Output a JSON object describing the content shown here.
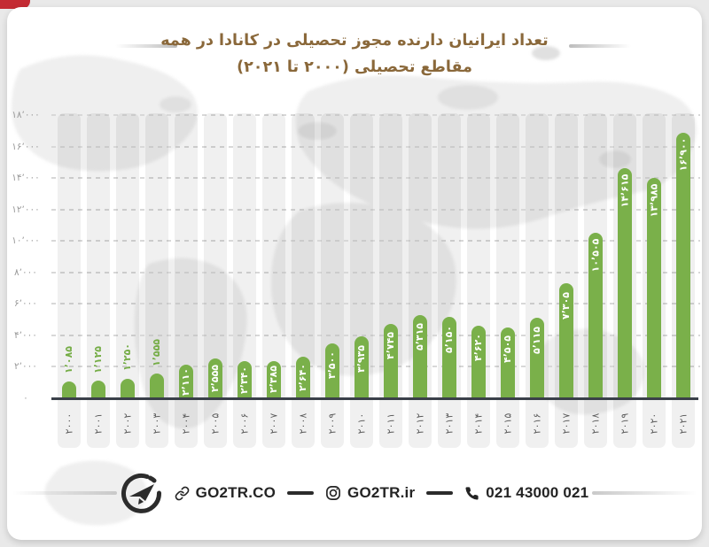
{
  "page": {
    "title_line1": "تعداد ایرانیان دارنده مجوز تحصیلی در کانادا در همه",
    "title_line2": "مقاطع تحصیلی (۲۰۰۰ تا ۲۰۲۱)"
  },
  "chart_data": {
    "type": "bar",
    "title": "تعداد ایرانیان دارنده مجوز تحصیلی در کانادا در همه مقاطع تحصیلی (۲۰۰۰ تا ۲۰۲۱)",
    "ylim": [
      0,
      18000
    ],
    "grid": "horizontal-dashed",
    "bar_color": "#7ab04a",
    "y_ticks": [
      {
        "value": 0,
        "label": "۰"
      },
      {
        "value": 2000,
        "label": "۲٬۰۰۰"
      },
      {
        "value": 4000,
        "label": "۴٬۰۰۰"
      },
      {
        "value": 6000,
        "label": "۶٬۰۰۰"
      },
      {
        "value": 8000,
        "label": "۸٬۰۰۰"
      },
      {
        "value": 10000,
        "label": "۱۰٬۰۰۰"
      },
      {
        "value": 12000,
        "label": "۱۲٬۰۰۰"
      },
      {
        "value": 14000,
        "label": "۱۴٬۰۰۰"
      },
      {
        "value": 16000,
        "label": "۱۶٬۰۰۰"
      },
      {
        "value": 18000,
        "label": "۱۸٬۰۰۰"
      }
    ],
    "bars": [
      {
        "year": "2000",
        "year_fa": "۲۰۰۰",
        "value": 1085,
        "label": "۱٬۰۸۵",
        "label_position": "above"
      },
      {
        "year": "2001",
        "year_fa": "۲۰۰۱",
        "value": 1125,
        "label": "۱٬۱۲۵",
        "label_position": "above"
      },
      {
        "year": "2002",
        "year_fa": "۲۰۰۲",
        "value": 1250,
        "label": "۱٬۲۵۰",
        "label_position": "above"
      },
      {
        "year": "2003",
        "year_fa": "۲۰۰۳",
        "value": 1555,
        "label": "۱٬۵۵۵",
        "label_position": "above"
      },
      {
        "year": "2004",
        "year_fa": "۲۰۰۴",
        "value": 2110,
        "label": "۲٬۱۱۰",
        "label_position": "inside"
      },
      {
        "year": "2005",
        "year_fa": "۲۰۰۵",
        "value": 2555,
        "label": "۲٬۵۵۵",
        "label_position": "inside"
      },
      {
        "year": "2006",
        "year_fa": "۲۰۰۶",
        "value": 2340,
        "label": "۲٬۳۴۰",
        "label_position": "inside"
      },
      {
        "year": "2007",
        "year_fa": "۲۰۰۷",
        "value": 2385,
        "label": "۲٬۳۸۵",
        "label_position": "inside"
      },
      {
        "year": "2008",
        "year_fa": "۲۰۰۸",
        "value": 2640,
        "label": "۲٬۶۴۰",
        "label_position": "inside"
      },
      {
        "year": "2009",
        "year_fa": "۲۰۰۹",
        "value": 3500,
        "label": "۳٬۵۰۰",
        "label_position": "inside"
      },
      {
        "year": "2010",
        "year_fa": "۲۰۱۰",
        "value": 3935,
        "label": "۳٬۹۳۵",
        "label_position": "inside"
      },
      {
        "year": "2011",
        "year_fa": "۲۰۱۱",
        "value": 4745,
        "label": "۴٬۷۴۵",
        "label_position": "inside"
      },
      {
        "year": "2012",
        "year_fa": "۲۰۱۲",
        "value": 5315,
        "label": "۵٬۳۱۵",
        "label_position": "inside"
      },
      {
        "year": "2013",
        "year_fa": "۲۰۱۳",
        "value": 5150,
        "label": "۵٬۱۵۰",
        "label_position": "inside"
      },
      {
        "year": "2014",
        "year_fa": "۲۰۱۴",
        "value": 4620,
        "label": "۴٬۶۲۰",
        "label_position": "inside"
      },
      {
        "year": "2015",
        "year_fa": "۲۰۱۵",
        "value": 4505,
        "label": "۴٬۵۰۵",
        "label_position": "inside"
      },
      {
        "year": "2016",
        "year_fa": "۲۰۱۶",
        "value": 5115,
        "label": "۵٬۱۱۵",
        "label_position": "inside"
      },
      {
        "year": "2017",
        "year_fa": "۲۰۱۷",
        "value": 7305,
        "label": "۷٬۳۰۵",
        "label_position": "inside"
      },
      {
        "year": "2018",
        "year_fa": "۲۰۱۸",
        "value": 10505,
        "label": "۱۰٬۵۰۵",
        "label_position": "inside"
      },
      {
        "year": "2019",
        "year_fa": "۲۰۱۹",
        "value": 14615,
        "label": "۱۴٬۶۱۵",
        "label_position": "inside"
      },
      {
        "year": "2020",
        "year_fa": "۲۰۲۰",
        "value": 13985,
        "label": "۱۳٬۹۸۵",
        "label_position": "inside"
      },
      {
        "year": "2021",
        "year_fa": "۲۰۲۱",
        "value": 16900,
        "label": "۱۶٬۹۰۰",
        "label_position": "inside"
      }
    ]
  },
  "footer": {
    "website": "GO2TR.CO",
    "instagram": "GO2TR.ir",
    "phone": "021 43000 021"
  },
  "colors": {
    "bar_green": "#7ab04a",
    "title_brown": "#8a683a",
    "corner_red": "#c42b33",
    "footer_dark": "#242424",
    "axis_dark": "#3a4049",
    "tick_gray": "#9a9a9a",
    "year_gray": "#5e5e5e",
    "card_white": "#ffffff",
    "page_gray": "#e9e9e9"
  }
}
